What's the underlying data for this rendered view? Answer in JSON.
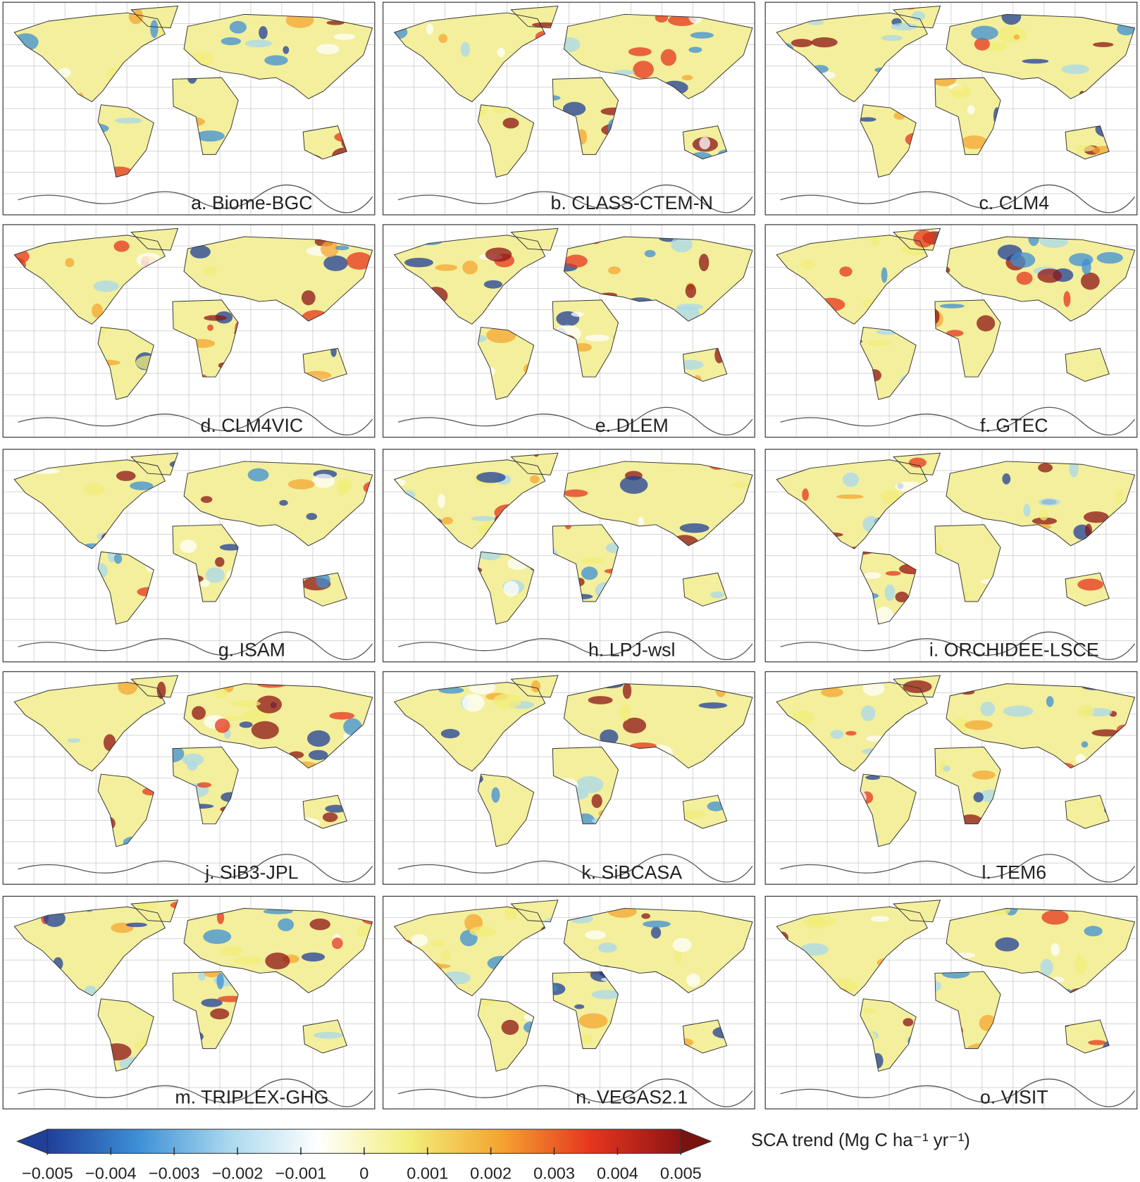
{
  "panels": [
    {
      "label": "a. Biome-BGC"
    },
    {
      "label": "b. CLASS-CTEM-N"
    },
    {
      "label": "c. CLM4"
    },
    {
      "label": "d. CLM4VIC"
    },
    {
      "label": "e. DLEM"
    },
    {
      "label": "f. GTEC"
    },
    {
      "label": "g. ISAM"
    },
    {
      "label": "h. LPJ-wsl"
    },
    {
      "label": "i. ORCHIDEE-LSCE"
    },
    {
      "label": "j. SiB3-JPL"
    },
    {
      "label": "k. SiBCASA"
    },
    {
      "label": "l. TEM6"
    },
    {
      "label": "m. TRIPLEX-GHG"
    },
    {
      "label": "n. VEGAS2.1"
    },
    {
      "label": "o. VISIT"
    }
  ],
  "colorbar": {
    "label": "SCA trend (Mg C ha⁻¹ yr⁻¹)",
    "lim": [
      -0.005,
      0.005
    ],
    "ticks": [
      {
        "value": -0.005,
        "label": "−0.005"
      },
      {
        "value": -0.004,
        "label": "−0.004"
      },
      {
        "value": -0.003,
        "label": "−0.003"
      },
      {
        "value": -0.002,
        "label": "−0.002"
      },
      {
        "value": -0.001,
        "label": "−0.001"
      },
      0,
      0.001,
      0.002,
      0.003,
      0.004,
      0.005
    ],
    "colors": [
      "#1f3f99",
      "#3d8fd6",
      "#a9d8ee",
      "#ffffff",
      "#f2ee7a",
      "#f5a531",
      "#e5361e",
      "#8e1414"
    ],
    "under_color": "#1f3f99",
    "over_color": "#7a1212"
  }
}
